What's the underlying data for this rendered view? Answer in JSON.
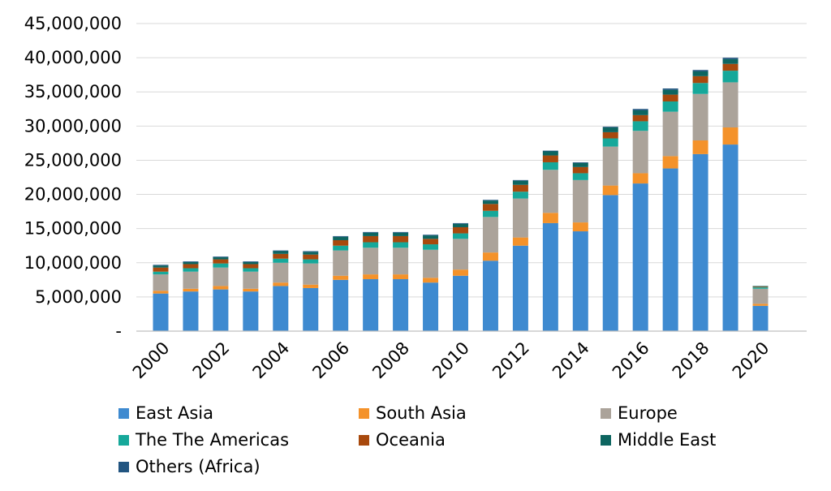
{
  "chart_data": {
    "type": "bar",
    "stacked": true,
    "title": "",
    "xlabel": "",
    "ylabel": "",
    "ylim": [
      0,
      45000000
    ],
    "y_ticks": [
      "-",
      "5,000,000",
      "10,000,000",
      "15,000,000",
      "20,000,000",
      "25,000,000",
      "30,000,000",
      "35,000,000",
      "40,000,000",
      "45,000,000"
    ],
    "y_tick_values": [
      0,
      5000000,
      10000000,
      15000000,
      20000000,
      25000000,
      30000000,
      35000000,
      40000000,
      45000000
    ],
    "categories": [
      "2000",
      "2001",
      "2002",
      "2003",
      "2004",
      "2005",
      "2006",
      "2007",
      "2008",
      "2009",
      "2010",
      "2011",
      "2012",
      "2013",
      "2014",
      "2015",
      "2016",
      "2017",
      "2018",
      "2019",
      "2020"
    ],
    "x_tick_labels": [
      "2000",
      "2002",
      "2004",
      "2006",
      "2008",
      "2010",
      "2012",
      "2014",
      "2016",
      "2018",
      "2020"
    ],
    "grid": "horizontal",
    "legend_position": "bottom",
    "series": [
      {
        "name": "East Asia",
        "color": "#3e8ad0",
        "values": [
          5500000,
          5800000,
          6100000,
          5800000,
          6600000,
          6300000,
          7500000,
          7600000,
          7600000,
          7100000,
          8100000,
          10300000,
          12500000,
          15800000,
          14600000,
          19900000,
          21600000,
          23800000,
          25900000,
          27300000,
          3700000
        ]
      },
      {
        "name": "South Asia",
        "color": "#f4922a",
        "values": [
          400000,
          400000,
          500000,
          400000,
          500000,
          500000,
          600000,
          700000,
          700000,
          700000,
          900000,
          1200000,
          1200000,
          1500000,
          1300000,
          1400000,
          1500000,
          1800000,
          2000000,
          2500000,
          300000
        ]
      },
      {
        "name": "Europe",
        "color": "#aba39a",
        "values": [
          2400000,
          2500000,
          2700000,
          2500000,
          2900000,
          3100000,
          3700000,
          3900000,
          3900000,
          4100000,
          4500000,
          5200000,
          5700000,
          6300000,
          6200000,
          5700000,
          6200000,
          6500000,
          6800000,
          6600000,
          2200000
        ]
      },
      {
        "name": "The The Americas",
        "color": "#16a89a",
        "values": [
          400000,
          500000,
          600000,
          500000,
          600000,
          600000,
          700000,
          800000,
          800000,
          800000,
          800000,
          900000,
          1000000,
          1100000,
          1000000,
          1200000,
          1400000,
          1500000,
          1600000,
          1700000,
          200000
        ]
      },
      {
        "name": "Oceania",
        "color": "#a8490d",
        "values": [
          600000,
          600000,
          600000,
          600000,
          700000,
          700000,
          800000,
          900000,
          900000,
          800000,
          900000,
          1000000,
          1000000,
          1000000,
          900000,
          900000,
          900000,
          1000000,
          1000000,
          1000000,
          100000
        ]
      },
      {
        "name": "Middle East",
        "color": "#0d6560",
        "values": [
          300000,
          300000,
          300000,
          300000,
          400000,
          400000,
          500000,
          500000,
          500000,
          500000,
          500000,
          500000,
          600000,
          600000,
          600000,
          700000,
          700000,
          700000,
          700000,
          700000,
          100000
        ]
      },
      {
        "name": "Others (Africa)",
        "color": "#215480",
        "values": [
          100000,
          100000,
          100000,
          100000,
          100000,
          100000,
          100000,
          100000,
          100000,
          100000,
          100000,
          100000,
          100000,
          100000,
          100000,
          100000,
          200000,
          200000,
          200000,
          200000,
          0
        ]
      }
    ]
  }
}
